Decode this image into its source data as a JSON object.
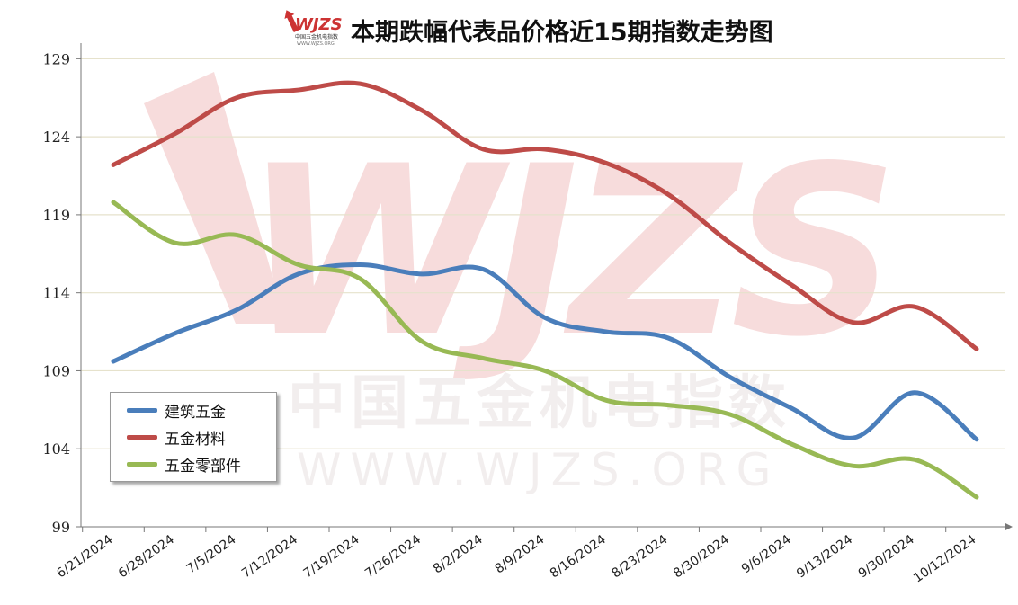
{
  "title": "本期跌幅代表品价格近15期指数走势图",
  "logo": {
    "text": "WJZS",
    "subtext": "中国五金机电指数",
    "url_text": "WWW.WJZS.ORG"
  },
  "watermark": {
    "big": "WJZS",
    "cn": "中国五金机电指数",
    "url": "WWW.WJZS.ORG"
  },
  "colors": {
    "建筑五金": "#4a7ebb",
    "五金材料": "#be4b48",
    "五金零部件": "#98b954",
    "grid": "#e6e2cc",
    "watermark": "#f2c9c9"
  },
  "chart_data": {
    "type": "line",
    "title": "本期跌幅代表品价格近15期指数走势图",
    "categories": [
      "6/21/2024",
      "6/28/2024",
      "7/5/2024",
      "7/12/2024",
      "7/19/2024",
      "7/26/2024",
      "8/2/2024",
      "8/9/2024",
      "8/16/2024",
      "8/23/2024",
      "8/30/2024",
      "9/6/2024",
      "9/13/2024",
      "9/30/2024",
      "10/12/2024"
    ],
    "series": [
      {
        "name": "建筑五金",
        "color": "#4a7ebb",
        "values": [
          109.6,
          111.4,
          112.9,
          115.2,
          115.8,
          115.2,
          115.5,
          112.4,
          111.5,
          111.1,
          108.6,
          106.6,
          104.7,
          107.6,
          104.6
        ]
      },
      {
        "name": "五金材料",
        "color": "#be4b48",
        "values": [
          122.2,
          124.2,
          126.5,
          127.0,
          127.4,
          125.7,
          123.2,
          123.2,
          122.3,
          120.3,
          117.2,
          114.5,
          112.1,
          113.1,
          110.4
        ]
      },
      {
        "name": "五金零部件",
        "color": "#98b954",
        "values": [
          119.8,
          117.2,
          117.7,
          115.8,
          114.9,
          110.9,
          109.8,
          109.0,
          107.1,
          106.8,
          106.2,
          104.3,
          102.9,
          103.3,
          100.9
        ]
      }
    ],
    "yticks": [
      99,
      104,
      109,
      114,
      119,
      124,
      129
    ],
    "ylim": [
      99,
      130
    ],
    "grid": "horizontal",
    "legend_position": "left-lower",
    "xlabel": "",
    "ylabel": ""
  }
}
